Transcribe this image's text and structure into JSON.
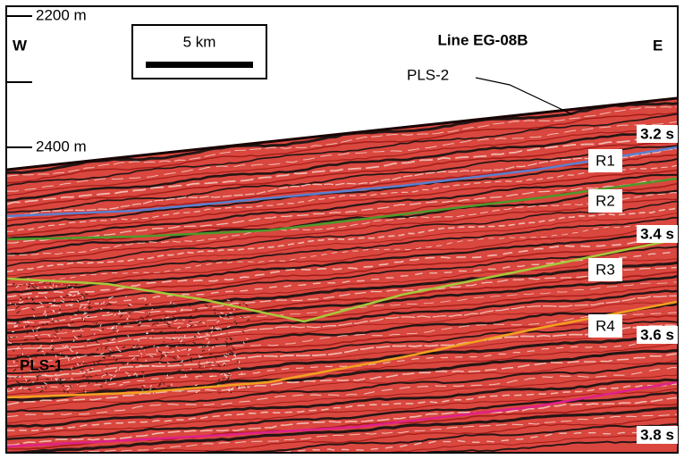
{
  "depth_labels": [
    "2200 m",
    "2400 m"
  ],
  "directions": {
    "west": "W",
    "east": "E"
  },
  "scale_bar": "5 km",
  "line_name": "Line EG-08B",
  "features": [
    "PLS-2",
    "PLS-1"
  ],
  "reflectors": [
    "R1",
    "R2",
    "R3",
    "R4"
  ],
  "time_labels": [
    "3.2 s",
    "3.4 s",
    "3.6 s",
    "3.8 s"
  ]
}
